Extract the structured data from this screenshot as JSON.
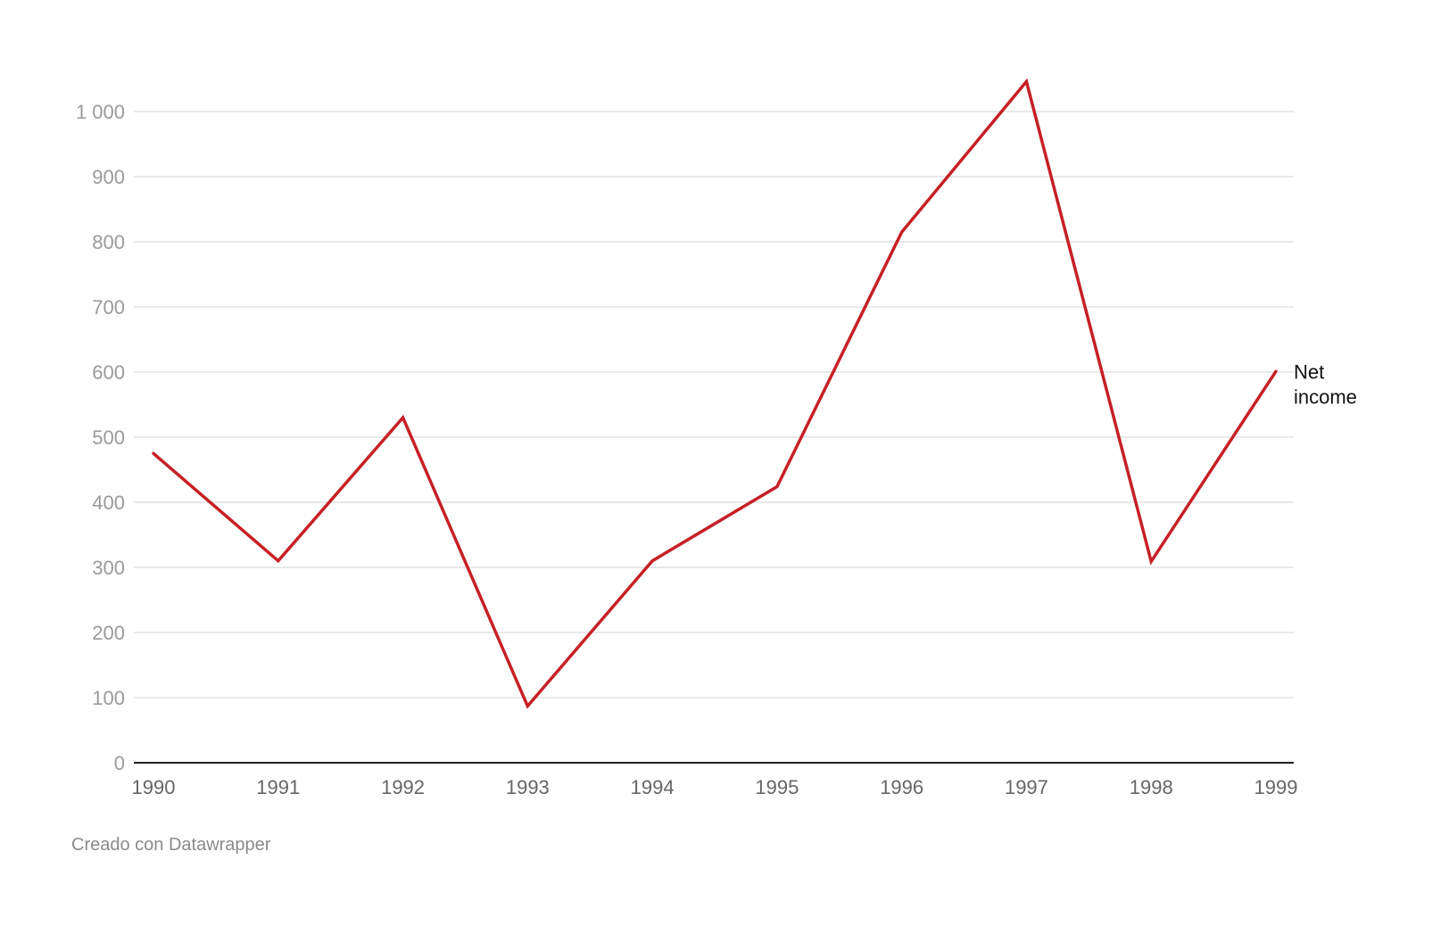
{
  "chart_data": {
    "type": "line",
    "x": [
      "1990",
      "1991",
      "1992",
      "1993",
      "1994",
      "1995",
      "1996",
      "1997",
      "1998",
      "1999"
    ],
    "series": [
      {
        "name": "Net income",
        "label_lines": [
          "Net",
          "income"
        ],
        "color": "#c62026",
        "values": [
          475,
          310,
          530,
          87,
          310,
          424,
          815,
          1046,
          309,
          601
        ]
      }
    ],
    "yticks": [
      0,
      100,
      200,
      300,
      400,
      500,
      600,
      700,
      800,
      900,
      1000
    ],
    "ytick_labels": [
      "0",
      "100",
      "200",
      "300",
      "400",
      "500",
      "600",
      "700",
      "800",
      "900",
      "1 000"
    ],
    "ylim": [
      0,
      1000
    ],
    "grid": true,
    "title": "",
    "xlabel": "",
    "ylabel": ""
  },
  "footer": {
    "credit": "Creado con Datawrapper"
  }
}
